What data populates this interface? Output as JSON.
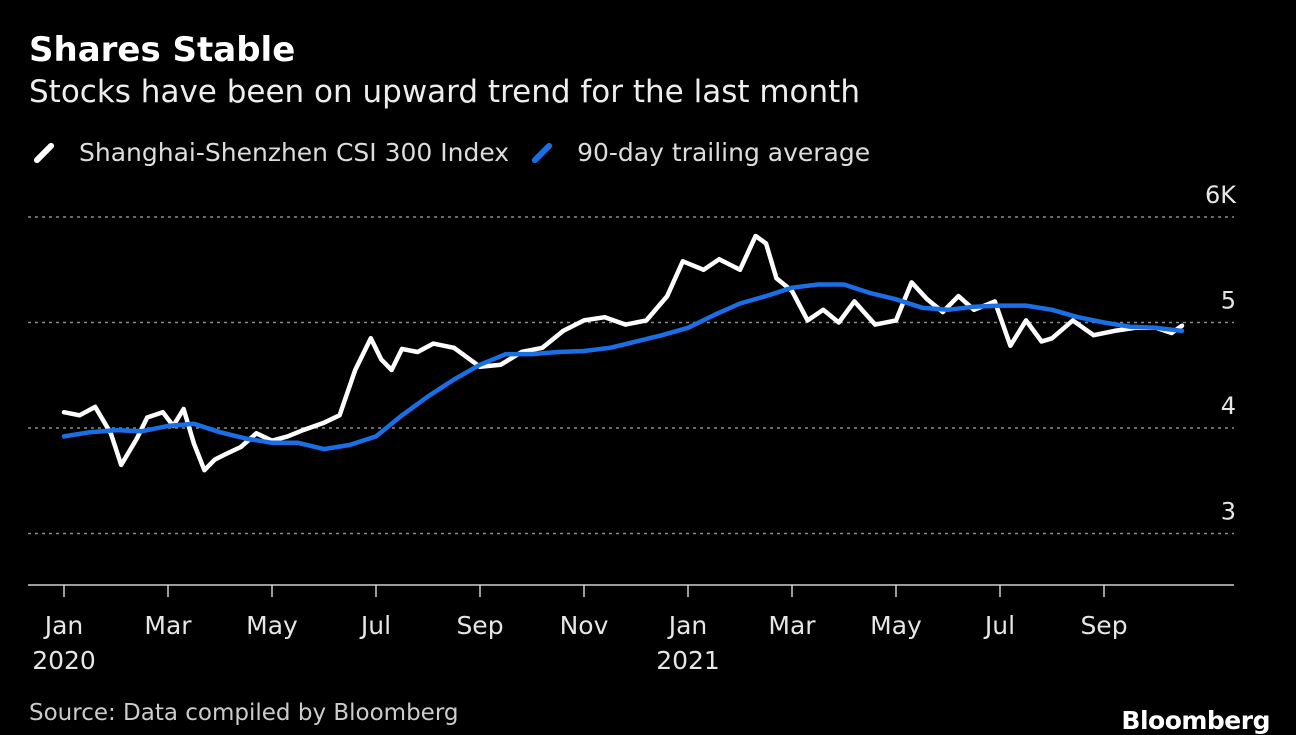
{
  "header": {
    "title": "Shares Stable",
    "subtitle": "Stocks have been on upward trend for the last month"
  },
  "footer": {
    "source": "Source: Data compiled by Bloomberg",
    "brand": "Bloomberg"
  },
  "colors": {
    "background": "#000000",
    "index_line": "#ffffff",
    "average_line": "#1a6fe6",
    "grid": "#888888"
  },
  "chart_data": {
    "type": "line",
    "title": "Shares Stable",
    "subtitle": "Stocks have been on upward trend for the last month",
    "ylabel": "",
    "xlabel": "",
    "ylim": [
      2.6,
      6.0
    ],
    "xlim": [
      -0.05,
      21.5
    ],
    "grid": true,
    "legend_position": "top-left",
    "y_ticks": [
      {
        "value": 6,
        "label": "6K"
      },
      {
        "value": 5,
        "label": "5"
      },
      {
        "value": 4,
        "label": "4"
      },
      {
        "value": 3,
        "label": "3"
      }
    ],
    "x_ticks": [
      {
        "value": 0,
        "label": "Jan",
        "sub": "2020"
      },
      {
        "value": 2,
        "label": "Mar",
        "sub": ""
      },
      {
        "value": 4,
        "label": "May",
        "sub": ""
      },
      {
        "value": 6,
        "label": "Jul",
        "sub": ""
      },
      {
        "value": 8,
        "label": "Sep",
        "sub": ""
      },
      {
        "value": 10,
        "label": "Nov",
        "sub": ""
      },
      {
        "value": 12,
        "label": "Jan",
        "sub": "2021"
      },
      {
        "value": 14,
        "label": "Mar",
        "sub": ""
      },
      {
        "value": 16,
        "label": "May",
        "sub": ""
      },
      {
        "value": 18,
        "label": "Jul",
        "sub": ""
      },
      {
        "value": 20,
        "label": "Sep",
        "sub": ""
      }
    ],
    "series": [
      {
        "name": "Shanghai-Shenzhen CSI 300 Index",
        "x": [
          0,
          0.3,
          0.6,
          0.9,
          1.1,
          1.4,
          1.6,
          1.9,
          2.1,
          2.3,
          2.5,
          2.7,
          2.9,
          3.1,
          3.4,
          3.7,
          4.0,
          4.3,
          4.6,
          5.0,
          5.3,
          5.6,
          5.9,
          6.1,
          6.3,
          6.5,
          6.8,
          7.1,
          7.5,
          8.0,
          8.4,
          8.8,
          9.2,
          9.6,
          10.0,
          10.4,
          10.8,
          11.2,
          11.6,
          11.9,
          12.3,
          12.6,
          13.0,
          13.3,
          13.5,
          13.7,
          14.0,
          14.3,
          14.6,
          14.9,
          15.2,
          15.6,
          16.0,
          16.3,
          16.6,
          16.9,
          17.2,
          17.5,
          17.9,
          18.2,
          18.5,
          18.8,
          19.0,
          19.4,
          19.8,
          20.2,
          20.6,
          21.0,
          21.3,
          21.5
        ],
        "values": [
          4.15,
          4.12,
          4.2,
          3.95,
          3.65,
          3.9,
          4.1,
          4.15,
          4.02,
          4.18,
          3.85,
          3.6,
          3.7,
          3.75,
          3.82,
          3.95,
          3.88,
          3.92,
          3.98,
          4.05,
          4.12,
          4.55,
          4.85,
          4.65,
          4.55,
          4.75,
          4.72,
          4.8,
          4.76,
          4.58,
          4.6,
          4.72,
          4.76,
          4.92,
          5.02,
          5.05,
          4.98,
          5.02,
          5.25,
          5.58,
          5.5,
          5.6,
          5.5,
          5.82,
          5.75,
          5.42,
          5.3,
          5.02,
          5.12,
          5.0,
          5.2,
          4.98,
          5.02,
          5.38,
          5.22,
          5.1,
          5.25,
          5.12,
          5.2,
          4.78,
          5.02,
          4.82,
          4.85,
          5.02,
          4.88,
          4.92,
          4.95,
          4.95,
          4.9,
          4.97
        ]
      },
      {
        "name": "90-day trailing average",
        "x": [
          0,
          0.5,
          1.0,
          1.5,
          2.0,
          2.5,
          3.0,
          3.5,
          4.0,
          4.5,
          5.0,
          5.5,
          6.0,
          6.5,
          7.0,
          7.5,
          8.0,
          8.5,
          9.0,
          9.5,
          10.0,
          10.5,
          11.0,
          11.5,
          12.0,
          12.5,
          13.0,
          13.5,
          14.0,
          14.5,
          15.0,
          15.5,
          16.0,
          16.5,
          17.0,
          17.5,
          18.0,
          18.5,
          19.0,
          19.5,
          20.0,
          20.5,
          21.0,
          21.5
        ],
        "values": [
          3.92,
          3.96,
          3.98,
          3.97,
          4.02,
          4.04,
          3.96,
          3.9,
          3.86,
          3.86,
          3.8,
          3.84,
          3.92,
          4.12,
          4.3,
          4.46,
          4.6,
          4.7,
          4.7,
          4.72,
          4.73,
          4.76,
          4.82,
          4.88,
          4.95,
          5.07,
          5.18,
          5.25,
          5.33,
          5.36,
          5.36,
          5.28,
          5.22,
          5.14,
          5.12,
          5.15,
          5.16,
          5.16,
          5.12,
          5.05,
          5.0,
          4.96,
          4.95,
          4.92
        ]
      }
    ]
  }
}
